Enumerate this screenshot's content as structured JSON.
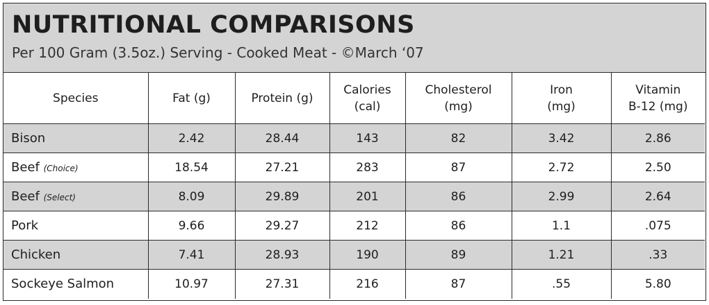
{
  "header": {
    "title": "NUTRITIONAL COMPARISONS",
    "subtitle": "Per 100 Gram (3.5oz.) Serving - Cooked Meat - ©March ‘07"
  },
  "table": {
    "columns": [
      {
        "line1": "Species",
        "line2": ""
      },
      {
        "line1": "Fat (g)",
        "line2": ""
      },
      {
        "line1": "Protein (g)",
        "line2": ""
      },
      {
        "line1": "Calories",
        "line2": "(cal)"
      },
      {
        "line1": "Cholesterol",
        "line2": "(mg)"
      },
      {
        "line1": "Iron",
        "line2": "(mg)"
      },
      {
        "line1": "Vitamin",
        "line2": "B-12 (mg)"
      }
    ],
    "rows": [
      {
        "species": "Bison",
        "variant": "",
        "fat": "2.42",
        "protein": "28.44",
        "calories": "143",
        "cholesterol": "82",
        "iron": "3.42",
        "b12": "2.86"
      },
      {
        "species": "Beef",
        "variant": "(Choice)",
        "fat": "18.54",
        "protein": "27.21",
        "calories": "283",
        "cholesterol": "87",
        "iron": "2.72",
        "b12": "2.50"
      },
      {
        "species": "Beef",
        "variant": "(Select)",
        "fat": "8.09",
        "protein": "29.89",
        "calories": "201",
        "cholesterol": "86",
        "iron": "2.99",
        "b12": "2.64"
      },
      {
        "species": "Pork",
        "variant": "",
        "fat": "9.66",
        "protein": "29.27",
        "calories": "212",
        "cholesterol": "86",
        "iron": "1.1",
        "b12": ".075"
      },
      {
        "species": "Chicken",
        "variant": "",
        "fat": "7.41",
        "protein": "28.93",
        "calories": "190",
        "cholesterol": "89",
        "iron": "1.21",
        "b12": ".33"
      },
      {
        "species": "Sockeye Salmon",
        "variant": "",
        "fat": "10.97",
        "protein": "27.31",
        "calories": "216",
        "cholesterol": "87",
        "iron": ".55",
        "b12": "5.80"
      }
    ]
  },
  "colors": {
    "shade": "#d4d4d4",
    "border": "#2a2a2a",
    "text": "#1e1e1e"
  }
}
